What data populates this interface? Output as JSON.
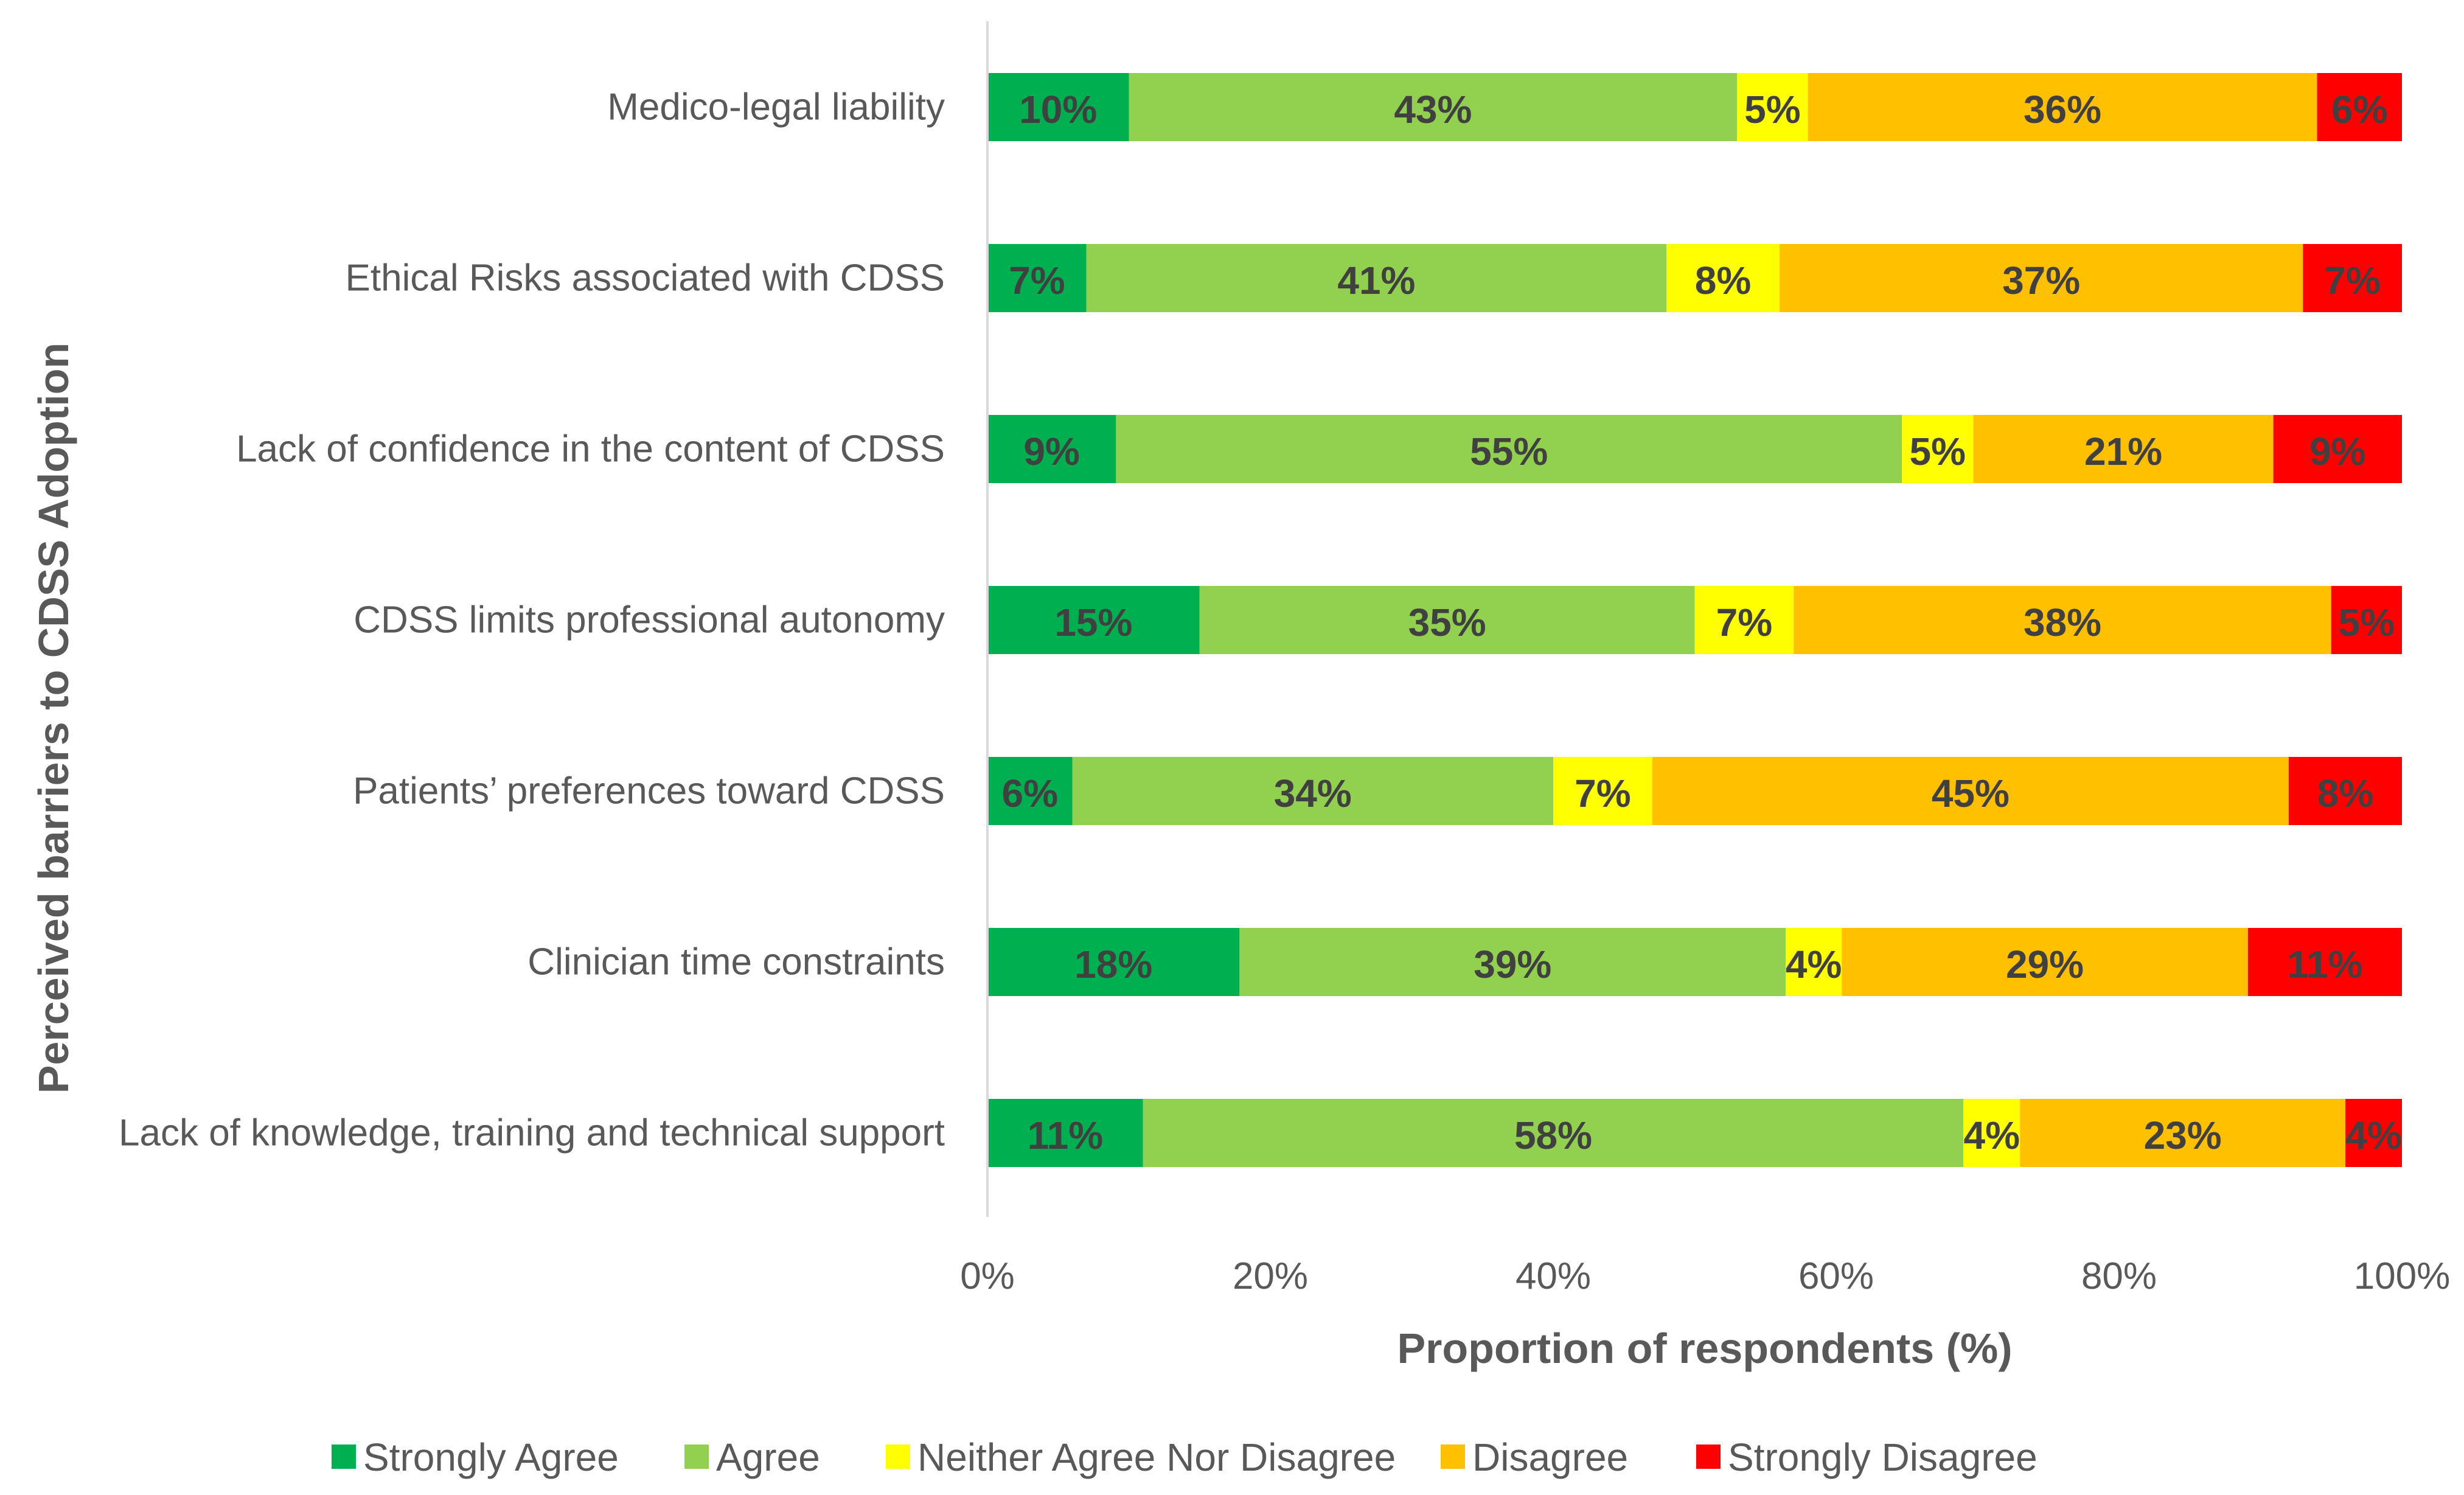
{
  "chart_data": {
    "type": "bar",
    "orientation": "horizontal",
    "stacked": "100%",
    "title": "",
    "xlabel": "Proportion of respondents (%)",
    "ylabel": "Perceived barriers to CDSS Adoption",
    "xlim": [
      0,
      100
    ],
    "x_ticks": [
      "0%",
      "20%",
      "40%",
      "60%",
      "80%",
      "100%"
    ],
    "grid": false,
    "legend_position": "bottom",
    "categories": [
      "Medico-legal liability",
      "Ethical Risks associated with CDSS",
      "Lack of confidence in the content of CDSS",
      "CDSS limits professional autonomy",
      "Patients’ preferences toward CDSS",
      "Clinician time constraints",
      "Lack of knowledge, training and technical support"
    ],
    "series": [
      {
        "name": "Strongly Agree",
        "color": "#00B050",
        "values": [
          10,
          7,
          9,
          15,
          6,
          18,
          11
        ],
        "labels": [
          "10%",
          "7%",
          "9%",
          "15%",
          "6%",
          "18%",
          "11%"
        ]
      },
      {
        "name": "Agree",
        "color": "#92D050",
        "values": [
          43,
          41,
          55,
          35,
          34,
          39,
          58
        ],
        "labels": [
          "43%",
          "41%",
          "55%",
          "35%",
          "34%",
          "39%",
          "58%"
        ]
      },
      {
        "name": "Neither Agree Nor Disagree",
        "color": "#FFFF00",
        "values": [
          5,
          8,
          5,
          7,
          7,
          4,
          4
        ],
        "labels": [
          "5%",
          "8%",
          "5%",
          "7%",
          "7%",
          "4%",
          "4%"
        ]
      },
      {
        "name": "Disagree",
        "color": "#FFC000",
        "values": [
          36,
          37,
          21,
          38,
          45,
          29,
          23
        ],
        "labels": [
          "36%",
          "37%",
          "21%",
          "38%",
          "45%",
          "29%",
          "23%"
        ]
      },
      {
        "name": "Strongly Disagree",
        "color": "#FF0000",
        "values": [
          6,
          7,
          9,
          5,
          8,
          11,
          4
        ],
        "labels": [
          "6%",
          "7%",
          "9%",
          "5%",
          "8%",
          "11%",
          "4%"
        ]
      }
    ]
  }
}
